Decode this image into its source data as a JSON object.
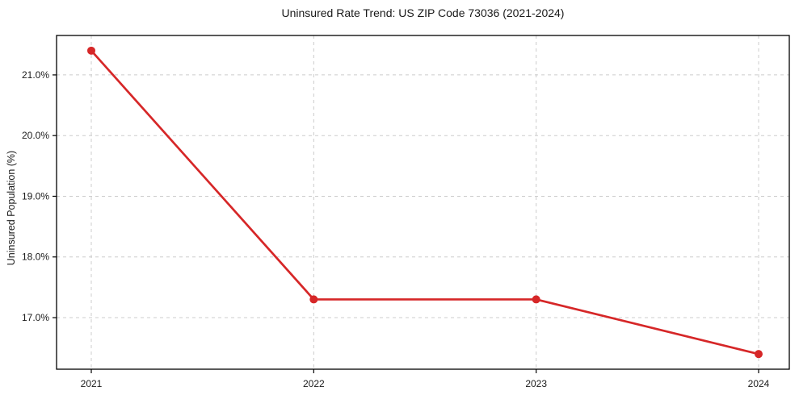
{
  "chart_data": {
    "type": "line",
    "title": "Uninsured Rate Trend: US ZIP Code 73036 (2021-2024)",
    "xlabel": "",
    "ylabel": "Uninsured Population (%)",
    "categories": [
      "2021",
      "2022",
      "2023",
      "2024"
    ],
    "series": [
      {
        "name": "Uninsured Rate",
        "values": [
          21.4,
          17.3,
          17.3,
          16.4
        ]
      }
    ],
    "ylim": [
      16.15,
      21.65
    ],
    "yticks": [
      17.0,
      18.0,
      19.0,
      20.0,
      21.0
    ],
    "ytick_labels": [
      "17.0%",
      "18.0%",
      "19.0%",
      "20.0%",
      "21.0%"
    ],
    "grid": true,
    "grid_style": "dashed",
    "legend_position": "none",
    "line_color": "#d62728",
    "marker": "circle",
    "grid_color": "#cccccc",
    "spine_color": "#000000",
    "text_color": "#1a1a1a"
  }
}
